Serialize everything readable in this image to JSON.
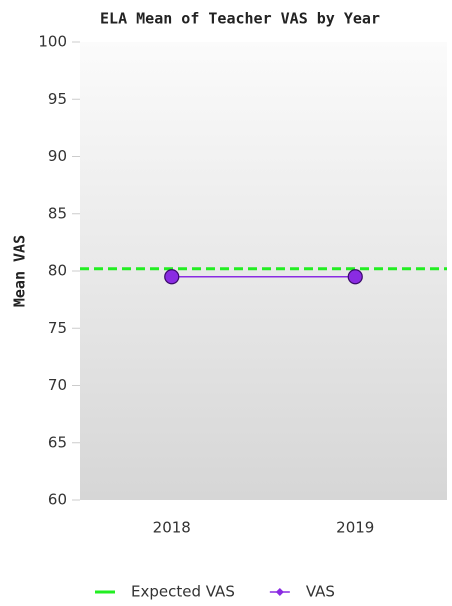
{
  "chart_data": {
    "type": "line",
    "title": "ELA Mean of Teacher VAS by Year",
    "y_label": "Mean VAS",
    "categories": [
      "2018",
      "2019"
    ],
    "series": [
      {
        "name": "Expected VAS",
        "color": "#22ee22",
        "line_style": "dashed",
        "values": [
          80.2,
          80.2
        ]
      },
      {
        "name": "VAS",
        "color": "#8a2be2",
        "line_style": "solid",
        "marker": "circle",
        "values": [
          79.5,
          79.5
        ]
      }
    ],
    "ylim": [
      60,
      100
    ],
    "yticks": [
      60,
      65,
      70,
      75,
      80,
      85,
      90,
      95,
      100
    ],
    "legend": "bottom"
  }
}
